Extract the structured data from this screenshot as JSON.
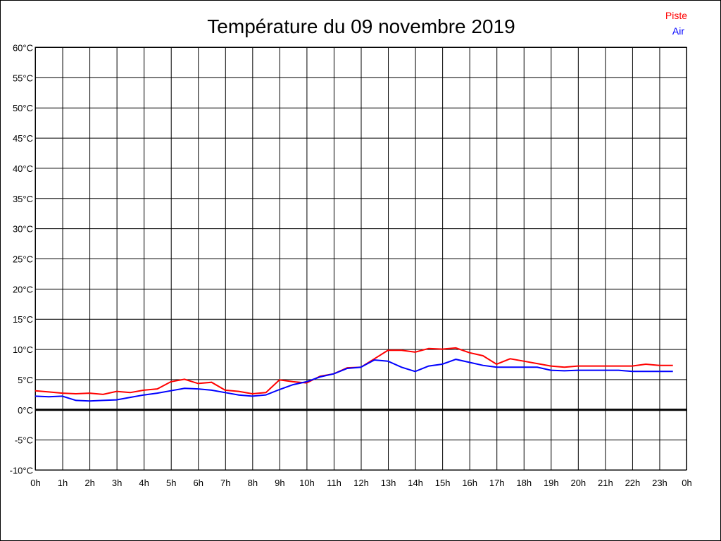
{
  "chart_data": {
    "type": "line",
    "title": "Température du 09 novembre 2019",
    "xlabel": "",
    "ylabel": "",
    "xlim": [
      0,
      24
    ],
    "ylim": [
      -10,
      60
    ],
    "grid": true,
    "legend_placement": "top-right",
    "x_tick_labels": [
      "0h",
      "1h",
      "2h",
      "3h",
      "4h",
      "5h",
      "6h",
      "7h",
      "8h",
      "9h",
      "10h",
      "11h",
      "12h",
      "13h",
      "14h",
      "15h",
      "16h",
      "17h",
      "18h",
      "19h",
      "20h",
      "21h",
      "22h",
      "23h",
      "0h"
    ],
    "y_ticks": [
      -10,
      -5,
      0,
      5,
      10,
      15,
      20,
      25,
      30,
      35,
      40,
      45,
      50,
      55,
      60
    ],
    "y_tick_labels": [
      "-10°C",
      "-5°C",
      "0°C",
      "5°C",
      "10°C",
      "15°C",
      "20°C",
      "25°C",
      "30°C",
      "35°C",
      "40°C",
      "45°C",
      "50°C",
      "55°C",
      "60°C"
    ],
    "x": [
      0,
      0.5,
      1,
      1.5,
      2,
      2.5,
      3,
      3.5,
      4,
      4.5,
      5,
      5.5,
      6,
      6.5,
      7,
      7.5,
      8,
      8.5,
      9,
      9.5,
      10,
      10.5,
      11,
      11.5,
      12,
      12.5,
      13,
      13.5,
      14,
      14.5,
      15,
      15.5,
      16,
      16.5,
      17,
      17.5,
      18,
      18.5,
      19,
      19.5,
      20,
      20.5,
      21,
      21.5,
      22,
      22.5,
      23,
      23.5
    ],
    "series": [
      {
        "name": "Piste",
        "color": "#ff0000",
        "values": [
          3.1,
          2.9,
          2.7,
          2.6,
          2.7,
          2.5,
          3.0,
          2.8,
          3.2,
          3.4,
          4.6,
          5.0,
          4.3,
          4.5,
          3.2,
          3.0,
          2.6,
          2.8,
          4.9,
          4.6,
          4.4,
          5.5,
          5.9,
          6.9,
          7.0,
          8.4,
          9.8,
          9.8,
          9.5,
          10.1,
          10.0,
          10.2,
          9.4,
          8.9,
          7.5,
          8.4,
          8.0,
          7.6,
          7.2,
          7.0,
          7.2,
          7.2,
          7.2,
          7.2,
          7.2,
          7.5,
          7.3,
          7.3
        ]
      },
      {
        "name": "Air",
        "color": "#0000ff",
        "values": [
          2.2,
          2.1,
          2.2,
          1.5,
          1.4,
          1.5,
          1.6,
          2.0,
          2.4,
          2.7,
          3.1,
          3.5,
          3.4,
          3.2,
          2.8,
          2.4,
          2.2,
          2.4,
          3.3,
          4.1,
          4.6,
          5.4,
          5.9,
          6.8,
          7.0,
          8.2,
          8.0,
          7.0,
          6.3,
          7.2,
          7.5,
          8.3,
          7.8,
          7.3,
          7.0,
          7.0,
          7.0,
          7.0,
          6.5,
          6.4,
          6.5,
          6.5,
          6.5,
          6.5,
          6.3,
          6.3,
          6.3,
          6.3
        ]
      }
    ]
  }
}
